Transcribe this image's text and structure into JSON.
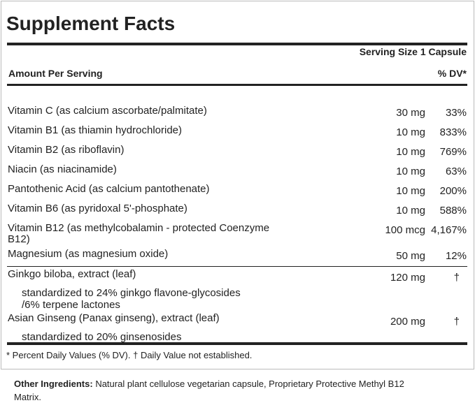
{
  "title": "Supplement Facts",
  "serving_size": "Serving Size 1 Capsule",
  "amount_header": "Amount Per Serving",
  "dv_header": "% DV*",
  "vitamins": [
    {
      "name": "Vitamin C (as calcium ascorbate/palmitate)",
      "amount": "30 mg",
      "dv": "33%"
    },
    {
      "name": "Vitamin B1 (as thiamin hydrochloride)",
      "amount": "10 mg",
      "dv": "833%"
    },
    {
      "name": "Vitamin B2 (as riboflavin)",
      "amount": "10 mg",
      "dv": "769%"
    },
    {
      "name": "Niacin (as niacinamide)",
      "amount": "10 mg",
      "dv": "63%"
    },
    {
      "name": "Pantothenic Acid (as calcium pantothenate)",
      "amount": "10 mg",
      "dv": "200%"
    },
    {
      "name": "Vitamin B6 (as pyridoxal 5'-phosphate)",
      "amount": "10 mg",
      "dv": "588%"
    },
    {
      "name": "Vitamin B12 (as methylcobalamin - protected Coenzyme",
      "name2": "B12)",
      "amount": "100 mcg",
      "dv": "4,167%"
    },
    {
      "name": "Magnesium (as magnesium oxide)",
      "amount": "50 mg",
      "dv": "12%"
    }
  ],
  "herbs": [
    {
      "name": "Ginkgo biloba, extract (leaf)",
      "amount": "120 mg",
      "dv": "†",
      "note": "standardized to 24% ginkgo flavone-glycosides",
      "note2": "/6% terpene lactones"
    },
    {
      "name": "Asian Ginseng (Panax ginseng), extract (leaf)",
      "amount": "200 mg",
      "dv": "†",
      "note": "standardized to 20% ginsenosides"
    }
  ],
  "footnote": "* Percent Daily Values (% DV). † Daily Value not established.",
  "other_label": "Other Ingredients:",
  "other_text": "Natural plant cellulose vegetarian capsule, Proprietary Protective Methyl B12",
  "other_text2": "Matrix."
}
